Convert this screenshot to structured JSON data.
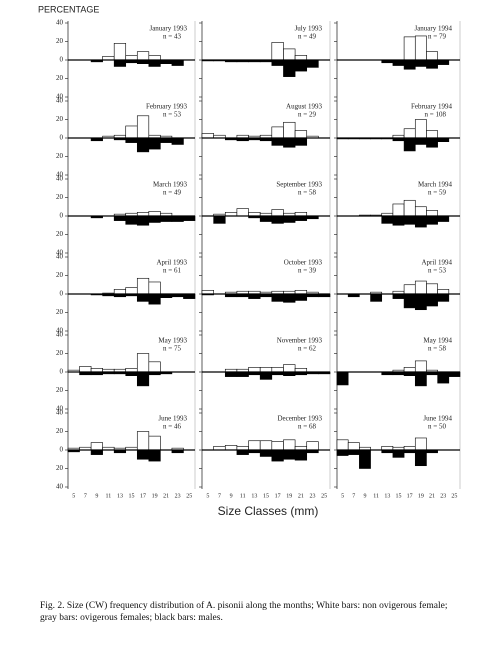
{
  "ylabel": "PERCENTAGE",
  "xlabel": "Size Classes (mm)",
  "caption": "Fig. 2. Size (CW) frequency distribution of A. pisonii along the months; White bars: non ovigerous female; gray bars: ovigerous females; black bars: males.",
  "categories": [
    5,
    7,
    9,
    11,
    13,
    15,
    17,
    19,
    21,
    23,
    25
  ],
  "ylim": [
    -40,
    40
  ],
  "yticks": [
    40,
    20,
    0,
    {
      "value": -20,
      "label": "20"
    },
    {
      "value": -40,
      "label": "40"
    }
  ],
  "chart_data": [
    {
      "type": "bar",
      "title": "January 1993",
      "subtitle": "n = 43",
      "series": [
        {
          "color": "#ffffff",
          "values": [
            0,
            0,
            0,
            4,
            18,
            5,
            9,
            5,
            0,
            0,
            0
          ]
        },
        {
          "color": "#000000",
          "values": [
            0,
            0,
            -2,
            0,
            -7,
            -3,
            -4,
            -7,
            -4,
            -6,
            0
          ]
        }
      ]
    },
    {
      "type": "bar",
      "title": "July 1993",
      "subtitle": "n = 49",
      "series": [
        {
          "color": "#ffffff",
          "values": [
            0,
            0,
            0,
            0,
            0,
            0,
            19,
            12,
            5,
            0,
            0
          ]
        },
        {
          "color": "#000000",
          "values": [
            -1,
            -1,
            -2,
            -2,
            -2,
            -2,
            -6,
            -18,
            -12,
            -8,
            0
          ]
        }
      ]
    },
    {
      "type": "bar",
      "title": "January 1994",
      "subtitle": "n = 79",
      "series": [
        {
          "color": "#ffffff",
          "values": [
            0,
            0,
            0,
            0,
            0,
            0,
            25,
            26,
            9,
            0,
            0
          ]
        },
        {
          "color": "#000000",
          "values": [
            0,
            0,
            0,
            0,
            -3,
            -6,
            -10,
            -7,
            -9,
            -5,
            0
          ]
        }
      ]
    },
    {
      "type": "bar",
      "title": "February 1993",
      "subtitle": "n = 53",
      "series": [
        {
          "color": "#ffffff",
          "values": [
            0,
            0,
            0,
            2,
            3,
            13,
            24,
            3,
            2,
            0,
            0
          ]
        },
        {
          "color": "#000000",
          "values": [
            0,
            0,
            -3,
            0,
            -2,
            -5,
            -15,
            -12,
            -5,
            -7,
            0
          ]
        }
      ]
    },
    {
      "type": "bar",
      "title": "August 1993",
      "subtitle": "n = 29",
      "series": [
        {
          "color": "#ffffff",
          "values": [
            5,
            3,
            0,
            3,
            2,
            3,
            12,
            17,
            8,
            2,
            0
          ]
        },
        {
          "color": "#000000",
          "values": [
            0,
            0,
            -2,
            -3,
            -2,
            -3,
            -8,
            -10,
            -8,
            0,
            0
          ]
        }
      ]
    },
    {
      "type": "bar",
      "title": "February 1994",
      "subtitle": "n = 108",
      "series": [
        {
          "color": "#ffffff",
          "values": [
            0,
            0,
            0,
            0,
            0,
            3,
            10,
            20,
            8,
            0,
            0
          ]
        },
        {
          "color": "#000000",
          "values": [
            -1,
            -1,
            -1,
            -1,
            -1,
            -3,
            -14,
            -7,
            -10,
            -4,
            0
          ]
        }
      ]
    },
    {
      "type": "bar",
      "title": "March 1993",
      "subtitle": "n = 49",
      "series": [
        {
          "color": "#ffffff",
          "values": [
            0,
            0,
            0,
            0,
            2,
            3,
            4,
            5,
            3,
            0,
            0
          ]
        },
        {
          "color": "#000000",
          "values": [
            0,
            0,
            -2,
            0,
            -5,
            -9,
            -10,
            -7,
            -6,
            -6,
            -5
          ]
        }
      ]
    },
    {
      "type": "bar",
      "title": "September 1993",
      "subtitle": "n = 58",
      "series": [
        {
          "color": "#ffffff",
          "values": [
            0,
            2,
            4,
            8,
            4,
            3,
            7,
            3,
            4,
            0,
            0
          ]
        },
        {
          "color": "#000000",
          "values": [
            0,
            -8,
            0,
            0,
            -2,
            -6,
            -8,
            -7,
            -5,
            -3,
            0
          ]
        }
      ]
    },
    {
      "type": "bar",
      "title": "March 1994",
      "subtitle": "n = 59",
      "series": [
        {
          "color": "#ffffff",
          "values": [
            0,
            0,
            1,
            1,
            3,
            13,
            17,
            10,
            6,
            0,
            0
          ]
        },
        {
          "color": "#000000",
          "values": [
            0,
            0,
            0,
            0,
            -8,
            -10,
            -9,
            -12,
            -9,
            -6,
            0
          ]
        }
      ]
    },
    {
      "type": "bar",
      "title": "April 1993",
      "subtitle": "n = 61",
      "series": [
        {
          "color": "#ffffff",
          "values": [
            0,
            0,
            0,
            1,
            5,
            7,
            17,
            13,
            0,
            0,
            0
          ]
        },
        {
          "color": "#000000",
          "values": [
            0,
            0,
            -1,
            -2,
            -3,
            -2,
            -8,
            -11,
            -4,
            -3,
            -5
          ]
        }
      ]
    },
    {
      "type": "bar",
      "title": "October 1993",
      "subtitle": "n = 39",
      "series": [
        {
          "color": "#ffffff",
          "values": [
            4,
            0,
            2,
            3,
            3,
            2,
            3,
            3,
            4,
            2,
            0
          ]
        },
        {
          "color": "#000000",
          "values": [
            -1,
            0,
            -3,
            -3,
            -5,
            -3,
            -8,
            -9,
            -7,
            -3,
            -3
          ]
        }
      ]
    },
    {
      "type": "bar",
      "title": "April 1994",
      "subtitle": "n = 53",
      "series": [
        {
          "color": "#ffffff",
          "values": [
            0,
            0,
            0,
            2,
            0,
            3,
            10,
            14,
            11,
            5,
            0
          ]
        },
        {
          "color": "#000000",
          "values": [
            0,
            -3,
            0,
            -8,
            0,
            -5,
            -15,
            -17,
            -13,
            -8,
            0
          ]
        }
      ]
    },
    {
      "type": "bar",
      "title": "May 1993",
      "subtitle": "n = 75",
      "series": [
        {
          "color": "#ffffff",
          "values": [
            2,
            6,
            4,
            3,
            3,
            4,
            20,
            11,
            0,
            0,
            0
          ]
        },
        {
          "color": "#000000",
          "values": [
            0,
            -3,
            -3,
            -2,
            -2,
            -4,
            -15,
            -3,
            -2,
            0,
            0
          ]
        }
      ]
    },
    {
      "type": "bar",
      "title": "November 1993",
      "subtitle": "n = 62",
      "series": [
        {
          "color": "#ffffff",
          "values": [
            0,
            0,
            3,
            3,
            5,
            5,
            5,
            8,
            4,
            0,
            0
          ]
        },
        {
          "color": "#000000",
          "values": [
            0,
            0,
            -5,
            -5,
            -3,
            -8,
            -3,
            -4,
            -3,
            -2,
            -2
          ]
        }
      ]
    },
    {
      "type": "bar",
      "title": "May 1994",
      "subtitle": "n = 58",
      "series": [
        {
          "color": "#ffffff",
          "values": [
            0,
            0,
            0,
            0,
            0,
            2,
            5,
            12,
            2,
            0,
            0
          ]
        },
        {
          "color": "#000000",
          "values": [
            -14,
            0,
            0,
            0,
            -3,
            -3,
            -4,
            -15,
            -3,
            -12,
            -5
          ]
        }
      ]
    },
    {
      "type": "bar",
      "title": "June 1993",
      "subtitle": "n = 46",
      "series": [
        {
          "color": "#ffffff",
          "values": [
            2,
            3,
            8,
            3,
            2,
            3,
            20,
            15,
            0,
            2,
            0
          ]
        },
        {
          "color": "#000000",
          "values": [
            -2,
            0,
            -5,
            0,
            -3,
            0,
            -10,
            -12,
            0,
            -3,
            0
          ]
        }
      ]
    },
    {
      "type": "bar",
      "title": "December 1993",
      "subtitle": "n = 68",
      "series": [
        {
          "color": "#ffffff",
          "values": [
            0,
            4,
            5,
            4,
            10,
            10,
            9,
            11,
            4,
            9,
            0
          ]
        },
        {
          "color": "#000000",
          "values": [
            0,
            0,
            0,
            -5,
            -3,
            -7,
            -12,
            -10,
            -11,
            -3,
            0
          ]
        }
      ]
    },
    {
      "type": "bar",
      "title": "June 1994",
      "subtitle": "n = 50",
      "series": [
        {
          "color": "#ffffff",
          "values": [
            11,
            8,
            3,
            0,
            4,
            3,
            4,
            13,
            0,
            0,
            0
          ]
        },
        {
          "color": "#000000",
          "values": [
            -6,
            -5,
            -20,
            0,
            -3,
            -8,
            -3,
            -17,
            -3,
            0,
            0
          ]
        }
      ]
    }
  ]
}
